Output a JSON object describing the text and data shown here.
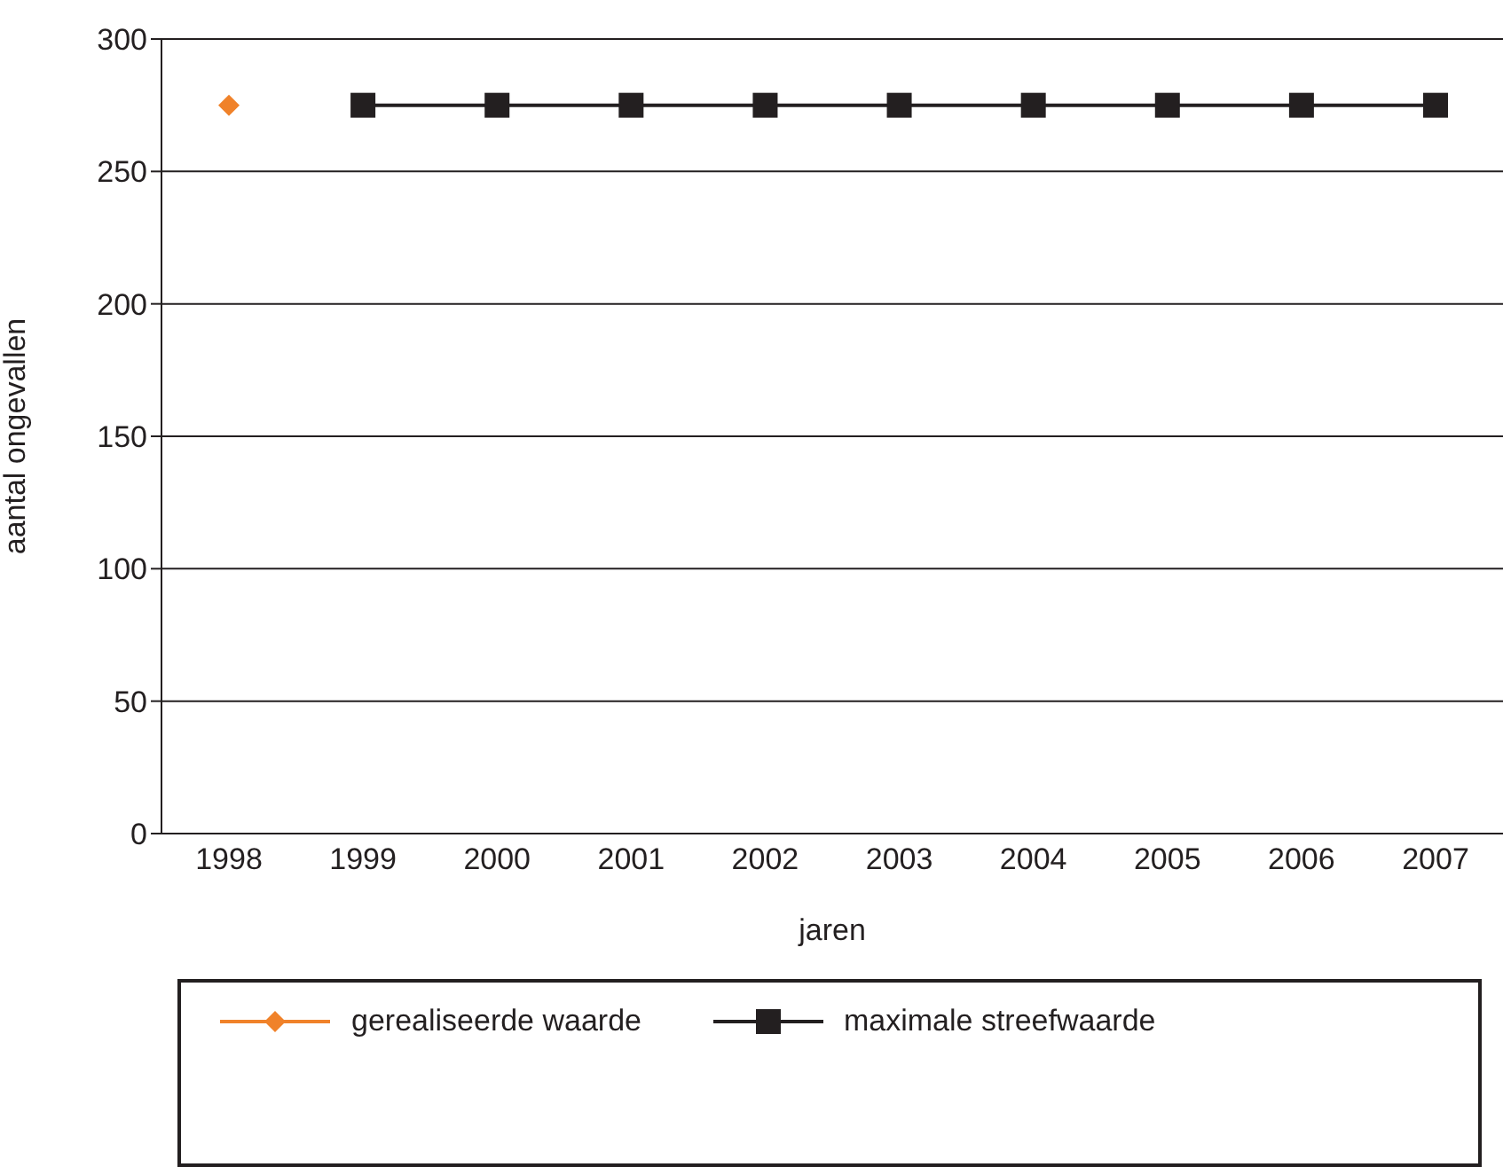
{
  "chart_data": {
    "type": "line",
    "xlabel": "jaren",
    "ylabel": "aantal ongevallen",
    "categories": [
      "1998",
      "1999",
      "2000",
      "2001",
      "2002",
      "2003",
      "2004",
      "2005",
      "2006",
      "2007"
    ],
    "series": [
      {
        "name": "gerealiseerde waarde",
        "color": "#f0822a",
        "marker": "diamond",
        "values": [
          275,
          null,
          null,
          null,
          null,
          null,
          null,
          null,
          null,
          null
        ]
      },
      {
        "name": "maximale streefwaarde",
        "color": "#231f20",
        "marker": "square",
        "values": [
          null,
          275,
          275,
          275,
          275,
          275,
          275,
          275,
          275,
          275
        ]
      }
    ],
    "ylim": [
      0,
      300
    ],
    "yticks": [
      0,
      50,
      100,
      150,
      200,
      250,
      300
    ],
    "grid": "y",
    "legend": "bottom"
  }
}
